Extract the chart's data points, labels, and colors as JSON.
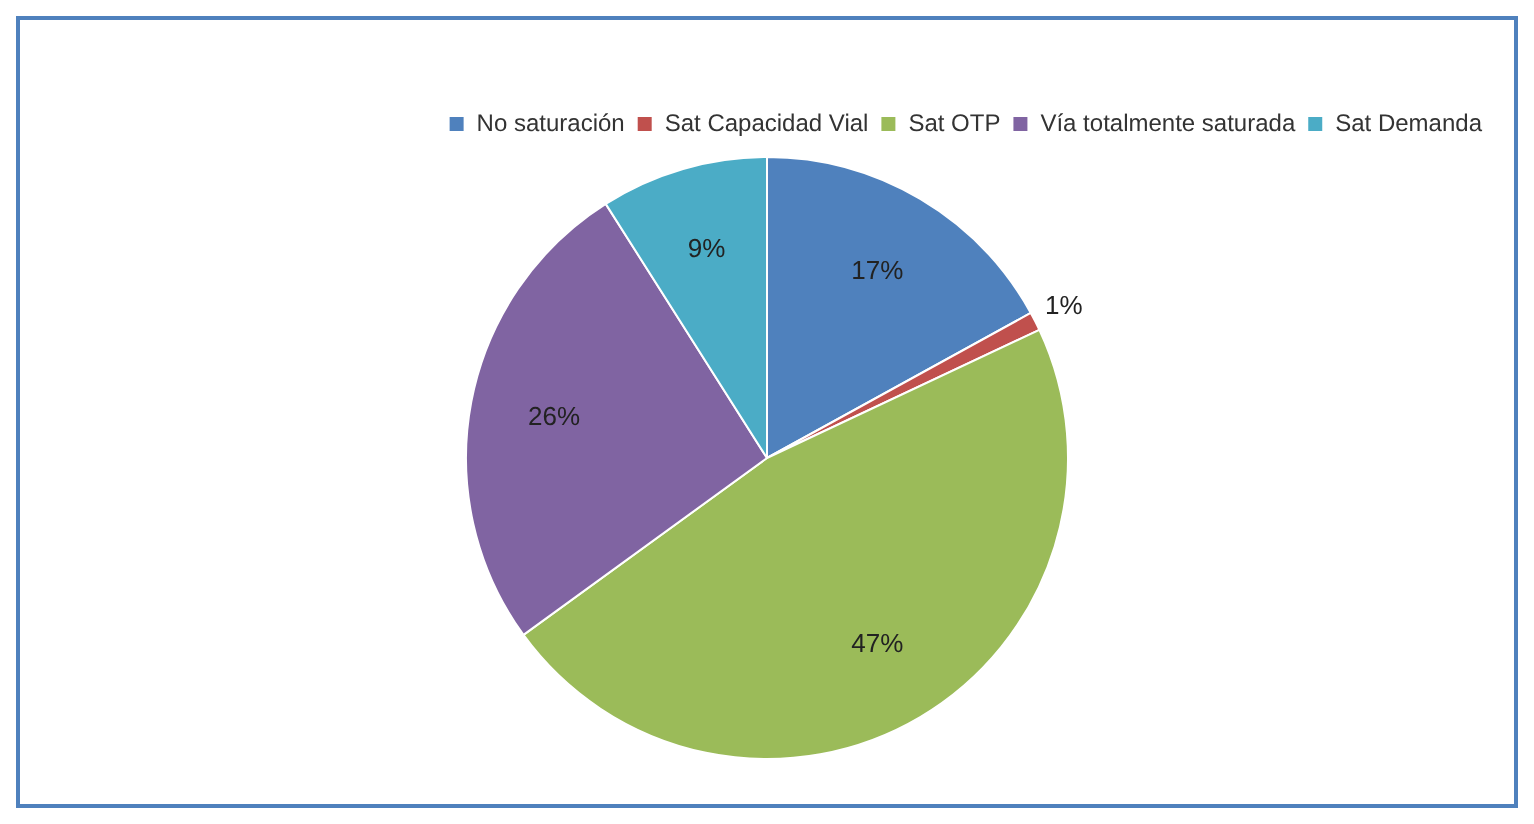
{
  "chart_data": {
    "type": "pie",
    "categories": [
      "No saturación",
      "Sat Capacidad Vial",
      "Sat OTP",
      "Vía totalmente saturada",
      "Sat Demanda"
    ],
    "values": [
      17,
      1,
      47,
      26,
      9
    ],
    "colors": [
      "#4f81bd",
      "#c0504d",
      "#9bbb59",
      "#8064a2",
      "#4bacc6"
    ],
    "value_labels": [
      "17%",
      "1%",
      "47%",
      "26%",
      "9%"
    ],
    "legend": "top"
  }
}
